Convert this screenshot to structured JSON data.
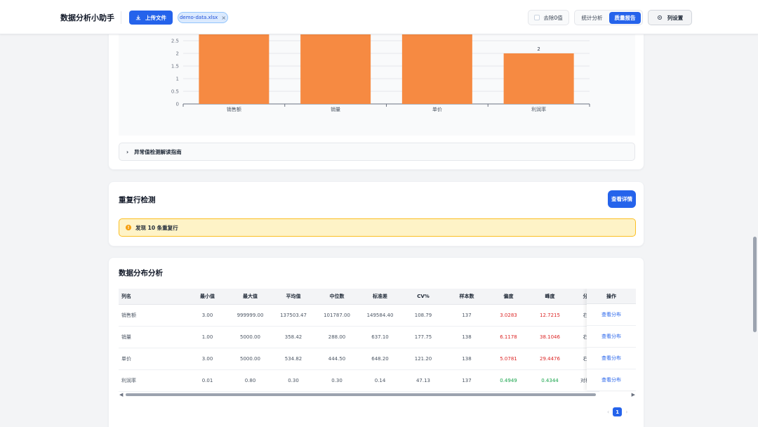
{
  "header": {
    "app_title": "数据分析小助手",
    "upload_label": "上传文件",
    "file_name": "demo-data.xlsx",
    "file_close": "×",
    "remove_zero_label": "去除0值",
    "tabs": [
      {
        "label": "统计分析",
        "active": false
      },
      {
        "label": "质量报告",
        "active": true
      }
    ],
    "column_settings_label": "列设置"
  },
  "outlier_chart": {
    "guide_label": "异常值检测解读指南",
    "chart_data": {
      "type": "bar",
      "categories": [
        "销售额",
        "销量",
        "单价",
        "利润率"
      ],
      "values": [
        3,
        3,
        3,
        2
      ],
      "data_labels": [
        "",
        "",
        "",
        "2"
      ],
      "y_ticks": [
        "0",
        "0.5",
        "1",
        "1.5",
        "2",
        "2.5"
      ],
      "ylim": [
        0,
        3
      ],
      "grid": true,
      "bar_color": "#f68a42"
    }
  },
  "duplicate": {
    "title": "重复行检测",
    "detail_button": "查看详情",
    "alert_text": "发现 10 条重复行"
  },
  "distribution": {
    "title": "数据分布分析",
    "columns": [
      "列名",
      "最小值",
      "最大值",
      "平均值",
      "中位数",
      "标准差",
      "CV%",
      "样本数",
      "偏度",
      "峰度",
      "分"
    ],
    "rows": [
      {
        "name": "销售额",
        "min": "3.00",
        "max": "999999.00",
        "mean": "137503.47",
        "median": "101787.00",
        "std": "149584.40",
        "cv": "108.79",
        "n": "137",
        "skew": "3.0283",
        "skew_color": "red",
        "kurt": "12.7215",
        "kurt_color": "red",
        "dist": "右"
      },
      {
        "name": "销量",
        "min": "1.00",
        "max": "5000.00",
        "mean": "358.42",
        "median": "288.00",
        "std": "637.10",
        "cv": "177.75",
        "n": "138",
        "skew": "6.1178",
        "skew_color": "red",
        "kurt": "38.1046",
        "kurt_color": "red",
        "dist": "右"
      },
      {
        "name": "单价",
        "min": "3.00",
        "max": "5000.00",
        "mean": "534.82",
        "median": "444.50",
        "std": "648.20",
        "cv": "121.20",
        "n": "138",
        "skew": "5.0781",
        "skew_color": "red",
        "kurt": "29.4476",
        "kurt_color": "red",
        "dist": "右"
      },
      {
        "name": "利润率",
        "min": "0.01",
        "max": "0.80",
        "mean": "0.30",
        "median": "0.30",
        "std": "0.14",
        "cv": "47.13",
        "n": "137",
        "skew": "0.4949",
        "skew_color": "green",
        "kurt": "0.4344",
        "kurt_color": "green",
        "dist": "对称"
      }
    ],
    "op_header": "操作",
    "op_label": "查看分布",
    "pagination": {
      "current": "1",
      "prev": "‹",
      "next": "›"
    },
    "scroll_left": "◀",
    "scroll_right": "▶"
  }
}
